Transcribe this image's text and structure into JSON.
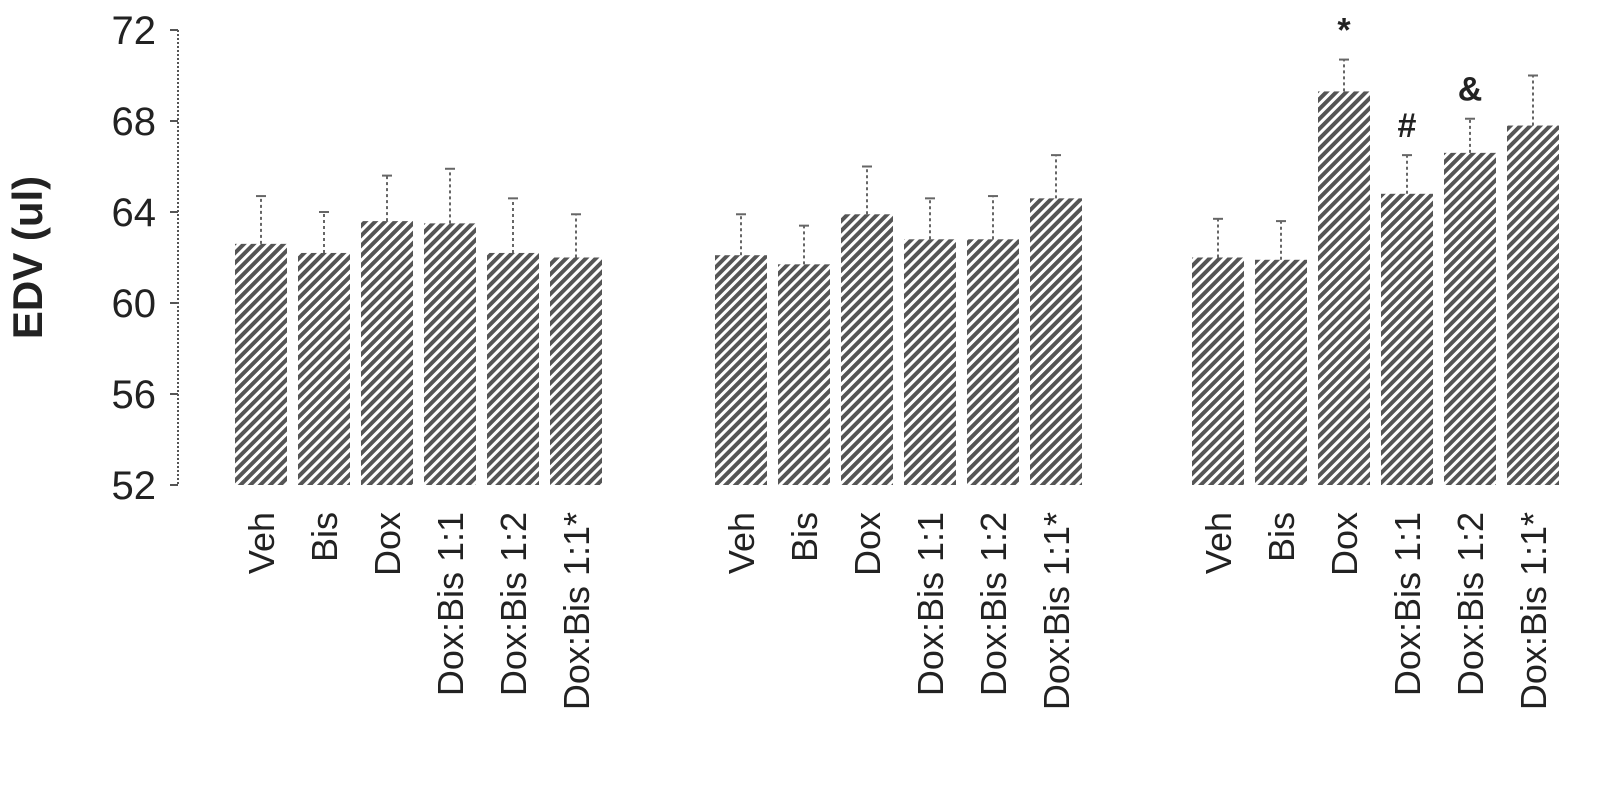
{
  "chart_data": {
    "type": "bar",
    "ylabel": "EDV (ul)",
    "ylim": [
      52,
      72
    ],
    "yticks": [
      "72",
      "68",
      "64",
      "60",
      "56",
      "52"
    ],
    "grid": false,
    "bar_pattern": "diagonal-hatch",
    "bar_color": "#555555",
    "groups": [
      {
        "categories": [
          "Veh",
          "Bis",
          "Dox",
          "Dox:Bis 1:1",
          "Dox:Bis 1:2",
          "Dox:Bis 1:1*"
        ],
        "values": [
          62.6,
          62.2,
          63.6,
          63.5,
          62.2,
          62.0
        ],
        "errors": [
          2.1,
          1.8,
          2.0,
          2.4,
          2.4,
          1.9
        ],
        "annotations": [
          "",
          "",
          "",
          "",
          "",
          ""
        ]
      },
      {
        "categories": [
          "Veh",
          "Bis",
          "Dox",
          "Dox:Bis 1:1",
          "Dox:Bis 1:2",
          "Dox:Bis 1:1*"
        ],
        "values": [
          62.1,
          61.7,
          63.9,
          62.8,
          62.8,
          64.6
        ],
        "errors": [
          1.8,
          1.7,
          2.1,
          1.8,
          1.9,
          1.9
        ],
        "annotations": [
          "",
          "",
          "",
          "",
          "",
          ""
        ]
      },
      {
        "categories": [
          "Veh",
          "Bis",
          "Dox",
          "Dox:Bis 1:1",
          "Dox:Bis 1:2",
          "Dox:Bis 1:1*"
        ],
        "values": [
          62.0,
          61.9,
          69.3,
          64.8,
          66.6,
          67.8
        ],
        "errors": [
          1.7,
          1.7,
          1.4,
          1.7,
          1.5,
          2.2
        ],
        "annotations": [
          "",
          "",
          "*",
          "#",
          "&",
          ""
        ]
      }
    ]
  }
}
